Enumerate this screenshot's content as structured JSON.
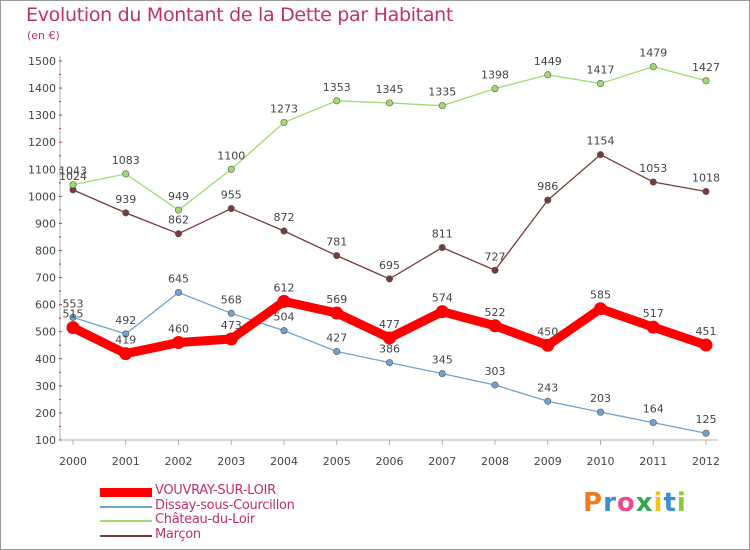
{
  "chart_data": {
    "type": "line",
    "title": "Evolution du Montant de la Dette par Habitant",
    "subtitle": "(en €)",
    "categories": [
      "2000",
      "2001",
      "2002",
      "2003",
      "2004",
      "2005",
      "2006",
      "2007",
      "2008",
      "2009",
      "2010",
      "2011",
      "2012"
    ],
    "ylim": [
      100,
      1500
    ],
    "yticks": [
      100,
      200,
      300,
      400,
      500,
      600,
      700,
      800,
      900,
      1000,
      1100,
      1200,
      1300,
      1400,
      1500
    ],
    "grid": false,
    "legend_position": "bottom-left",
    "series": [
      {
        "name": "VOUVRAY-SUR-LOIR",
        "color": "#ff0000",
        "values": [
          515,
          419,
          460,
          473,
          612,
          569,
          477,
          574,
          522,
          450,
          585,
          517,
          451
        ]
      },
      {
        "name": "Dissay-sous-Courcillon",
        "color": "#6fa3d0",
        "values": [
          553,
          492,
          645,
          568,
          504,
          427,
          386,
          345,
          303,
          243,
          203,
          164,
          125
        ]
      },
      {
        "name": "Château-du-Loir",
        "color": "#9fdc6f",
        "values": [
          1043,
          1083,
          949,
          1100,
          1273,
          1353,
          1345,
          1335,
          1398,
          1449,
          1417,
          1479,
          1427
        ]
      },
      {
        "name": "Marçon",
        "color": "#7a3a3a",
        "values": [
          1024,
          939,
          862,
          955,
          872,
          781,
          695,
          811,
          727,
          986,
          1154,
          1053,
          1018
        ]
      }
    ]
  },
  "logo": {
    "text": "Proxiti",
    "colors": [
      "#f07b1e",
      "#3c8fd6",
      "#e94d8a",
      "#2fa84f",
      "#f3c21c",
      "#3c8fd6",
      "#8cc63f"
    ]
  }
}
